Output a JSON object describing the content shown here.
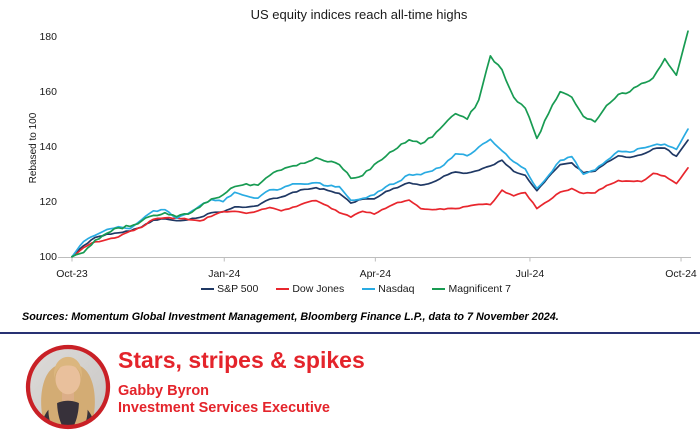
{
  "chart_data": {
    "type": "line",
    "title": "US equity indices reach all-time highs",
    "ylabel": "Rebased to 100",
    "xlabel": "",
    "ylim": [
      100,
      183
    ],
    "grid": false,
    "legend_position": "bottom",
    "x_unit": "weekly observations, Oct-2023 to 7-Nov-2024",
    "weeks_total": 53,
    "x_tick_weeks": [
      0,
      13.1,
      26.1,
      39.4,
      52.4
    ],
    "x_tick_labels": [
      "Oct-23",
      "Jan-24",
      "Apr-24",
      "Jul-24",
      "Oct-24"
    ],
    "y_ticks": [
      100,
      120,
      140,
      160,
      180
    ],
    "series": [
      {
        "name": "S&P 500",
        "color": "#1f3864",
        "values": [
          100,
          104,
          107,
          108.2,
          108.7,
          109.3,
          110.8,
          113.3,
          113.8,
          113.1,
          113.4,
          114.3,
          116,
          116.3,
          118.1,
          118,
          118.6,
          120.9,
          121.7,
          123.4,
          124.5,
          125.1,
          124.1,
          123,
          119.5,
          120.9,
          121,
          123.7,
          125.1,
          126.9,
          126,
          127,
          129.3,
          130.8,
          130.4,
          131.4,
          133,
          135.1,
          131,
          129.6,
          124,
          129,
          133.5,
          134.1,
          130.5,
          131.1,
          134.3,
          136.7,
          136.1,
          137.1,
          139.2,
          139.5,
          136.5,
          142.4
        ]
      },
      {
        "name": "Dow Jones",
        "color": "#e8262d",
        "values": [
          100,
          103.3,
          105.4,
          106.2,
          107.2,
          109.3,
          110.7,
          113.6,
          114.1,
          114.1,
          113.5,
          113,
          114.7,
          116.4,
          116.5,
          115.8,
          116.7,
          117.9,
          116.7,
          118,
          119.5,
          120.4,
          118.5,
          116,
          114.4,
          116.5,
          115.5,
          117.6,
          119.7,
          120.6,
          117.5,
          117.1,
          117.2,
          117.5,
          118.3,
          119,
          118.9,
          124.2,
          122.1,
          123.3,
          117.5,
          120.3,
          123.5,
          124.8,
          123,
          123.2,
          125.9,
          127.7,
          127.5,
          127.3,
          130.3,
          129.3,
          126.6,
          132.3
        ]
      },
      {
        "name": "Nasdaq",
        "color": "#29abe2",
        "values": [
          100,
          105.5,
          107.8,
          109.9,
          110.9,
          110.2,
          113.5,
          116.7,
          117.1,
          114,
          115.7,
          118.5,
          120.8,
          120,
          123.4,
          122.1,
          121.3,
          124.3,
          124.7,
          126.5,
          126.4,
          126.9,
          125.7,
          125.5,
          120.5,
          121.2,
          122.5,
          125.4,
          127.1,
          129.9,
          129.8,
          131.2,
          133.3,
          137.4,
          136.7,
          139.9,
          142.7,
          138.5,
          134.5,
          131.9,
          124.8,
          129.5,
          135,
          136.4,
          130,
          131.5,
          134.9,
          138.4,
          138,
          139.5,
          140.5,
          140.9,
          139,
          146.4
        ]
      },
      {
        "name": "Magnificent 7",
        "color": "#189b52",
        "values": [
          100,
          101.5,
          106,
          108.5,
          110.5,
          111,
          113,
          115,
          116,
          114.5,
          115.5,
          118,
          121,
          122.5,
          125.5,
          126.5,
          126,
          129.5,
          131.5,
          133,
          134,
          136,
          134.5,
          133.5,
          128.5,
          129.5,
          133.5,
          136.5,
          139.5,
          142.5,
          141,
          143.5,
          148,
          152,
          150,
          157,
          173,
          168,
          158,
          154,
          143,
          152,
          160,
          158,
          151,
          149,
          155,
          159,
          160,
          163,
          165,
          172,
          166,
          182
        ]
      }
    ]
  },
  "sources_note": "Sources: Momentum Global Investment Management, Bloomberg Finance L.P., data to 7 November 2024.",
  "footer": {
    "headline": "Stars, stripes & spikes",
    "author": "Gabby Byron",
    "role": "Investment Services Executive"
  },
  "colors": {
    "accent_red": "#e4242b",
    "avatar_ring_red": "#c92026",
    "divider_navy": "#283173",
    "axis_gray": "#bdbdbd",
    "text_dark": "#1a1a1a"
  }
}
